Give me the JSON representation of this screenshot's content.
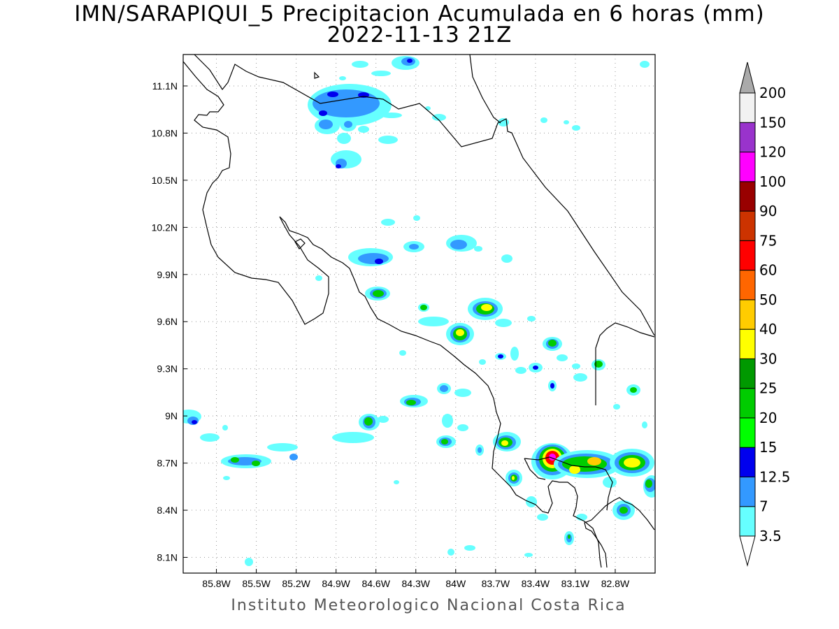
{
  "title_line1": "IMN/SARAPIQUI_5 Precipitacion Acumulada en 6 horas (mm)",
  "title_line2": "2022-11-13 21Z",
  "credit": "Instituto Meteorologico Nacional Costa Rica",
  "map": {
    "lon_range": [
      -86.05,
      -82.5
    ],
    "lat_range": [
      8.0,
      11.3
    ],
    "grid": "dotted",
    "lon_ticks": [
      "85.8W",
      "85.5W",
      "85.2W",
      "84.9W",
      "84.6W",
      "84.3W",
      "84W",
      "83.7W",
      "83.4W",
      "83.1W",
      "82.8W"
    ],
    "lat_ticks": [
      "11.1N",
      "10.8N",
      "10.5N",
      "10.2N",
      "9.9N",
      "9.6N",
      "9.3N",
      "9N",
      "8.7N",
      "8.4N",
      "8.1N"
    ]
  },
  "legend": {
    "levels": [
      "3.5",
      "7",
      "12.5",
      "15",
      "20",
      "25",
      "30",
      "40",
      "50",
      "60",
      "75",
      "90",
      "100",
      "120",
      "150",
      "200"
    ],
    "colors": [
      "#66ffff",
      "#3399ff",
      "#0000ee",
      "#00ff00",
      "#00cc00",
      "#009900",
      "#ffff00",
      "#ffcc00",
      "#ff6600",
      "#ff0000",
      "#cc3300",
      "#990000",
      "#ff00ff",
      "#9933cc",
      "#f2f2f2",
      "#aaaaaa"
    ]
  }
}
